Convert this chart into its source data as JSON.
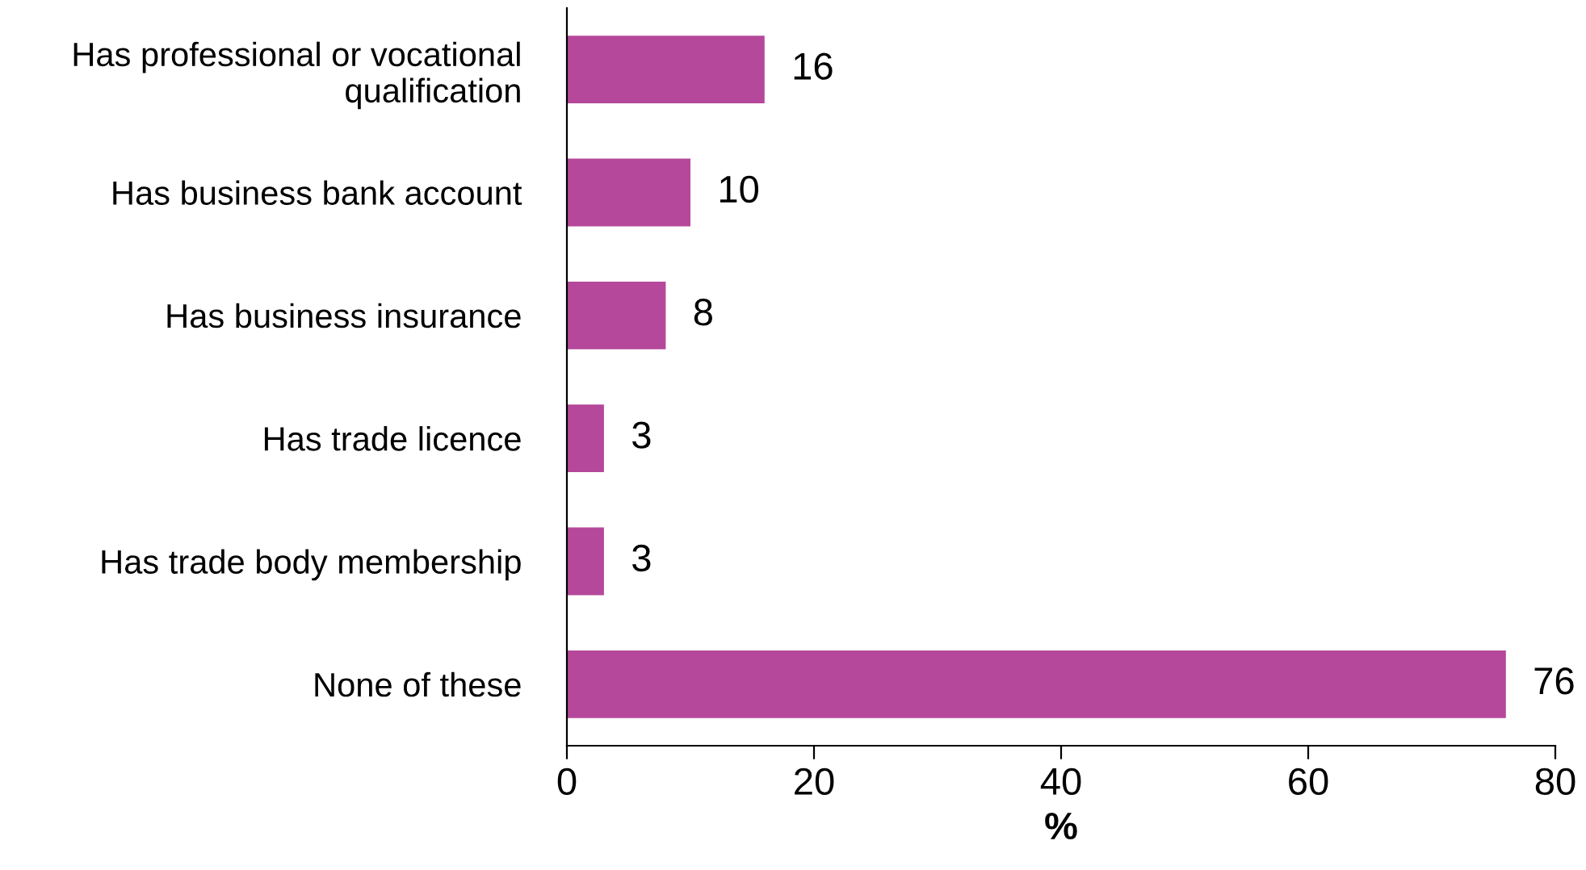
{
  "chart_data": {
    "type": "bar",
    "orientation": "horizontal",
    "xlabel": "%",
    "categories": [
      "Has professional or vocational\nqualification",
      "Has business bank account",
      "Has business insurance",
      "Has trade licence",
      "Has trade body membership",
      "None of these"
    ],
    "values": [
      16,
      10,
      8,
      3,
      3,
      76
    ],
    "color": "#b5489a",
    "xlim": [
      0,
      80
    ],
    "xticks": [
      0,
      20,
      40,
      60,
      80
    ],
    "data_labels": true,
    "grid": false,
    "legend": false
  }
}
